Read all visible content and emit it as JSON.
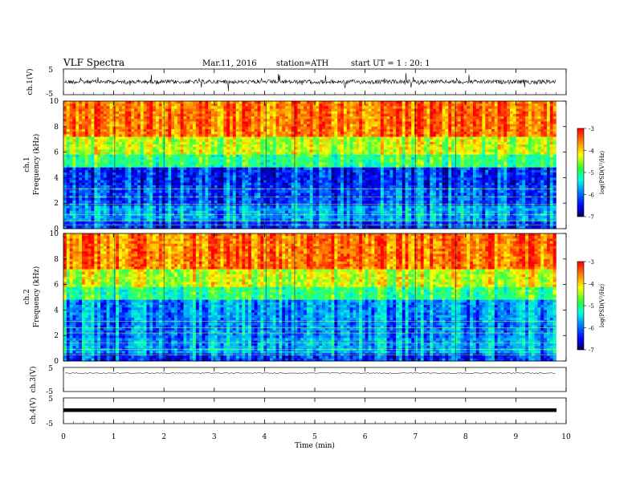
{
  "header": {
    "title": "VLF Spectra",
    "date": "Mar.11, 2016",
    "station": "station=ATH",
    "start": "start UT =   1 : 20: 1"
  },
  "chart_data": [
    {
      "type": "line",
      "panel": "ch1-waveform",
      "ylabel": "ch.1(V)",
      "ylim": [
        -5,
        5
      ],
      "yticks": [
        "5",
        "-5"
      ],
      "x_range_min": [
        0,
        9.8
      ]
    },
    {
      "type": "heatmap",
      "panel": "ch1-spectrogram",
      "ylabel_line1": "ch.1",
      "ylabel_line2": "Frequency (kHz)",
      "ylim": [
        0,
        10
      ],
      "yticks": [
        "0",
        "2",
        "4",
        "6",
        "8",
        "10"
      ],
      "colorbar_label": "log(PSD(V²/Hz)",
      "colorbar_ticks": [
        "-3",
        "-4",
        "-5",
        "-6",
        "-7"
      ],
      "colorbar_range": [
        -7,
        -3
      ]
    },
    {
      "type": "heatmap",
      "panel": "ch2-spectrogram",
      "ylabel_line1": "ch.2",
      "ylabel_line2": "Frequency (kHz)",
      "ylim": [
        0,
        10
      ],
      "yticks": [
        "0",
        "2",
        "4",
        "6",
        "8",
        "10"
      ],
      "colorbar_label": "log(PSD(V²/Hz)",
      "colorbar_ticks": [
        "-3",
        "-4",
        "-5",
        "-6",
        "-7"
      ],
      "colorbar_range": [
        -7,
        -3
      ]
    },
    {
      "type": "line",
      "panel": "ch3-waveform",
      "ylabel": "ch.3(V)",
      "ylim": [
        -5,
        5
      ],
      "yticks": [
        "5",
        "-5"
      ]
    },
    {
      "type": "line",
      "panel": "ch4-waveform",
      "ylabel": "ch.4(V)",
      "ylim": [
        -5,
        5
      ],
      "yticks": [
        "5",
        "-5"
      ]
    }
  ],
  "xaxis": {
    "label": "Time (min)",
    "range": [
      0,
      10
    ],
    "ticks": [
      "0",
      "1",
      "2",
      "3",
      "4",
      "5",
      "6",
      "7",
      "8",
      "9",
      "10"
    ]
  },
  "colors": {
    "waveform": "#000000",
    "colormap": [
      "#000060",
      "#0000ff",
      "#00a0ff",
      "#00ffd0",
      "#40ff40",
      "#ffff00",
      "#ff8000",
      "#ff0000"
    ]
  }
}
